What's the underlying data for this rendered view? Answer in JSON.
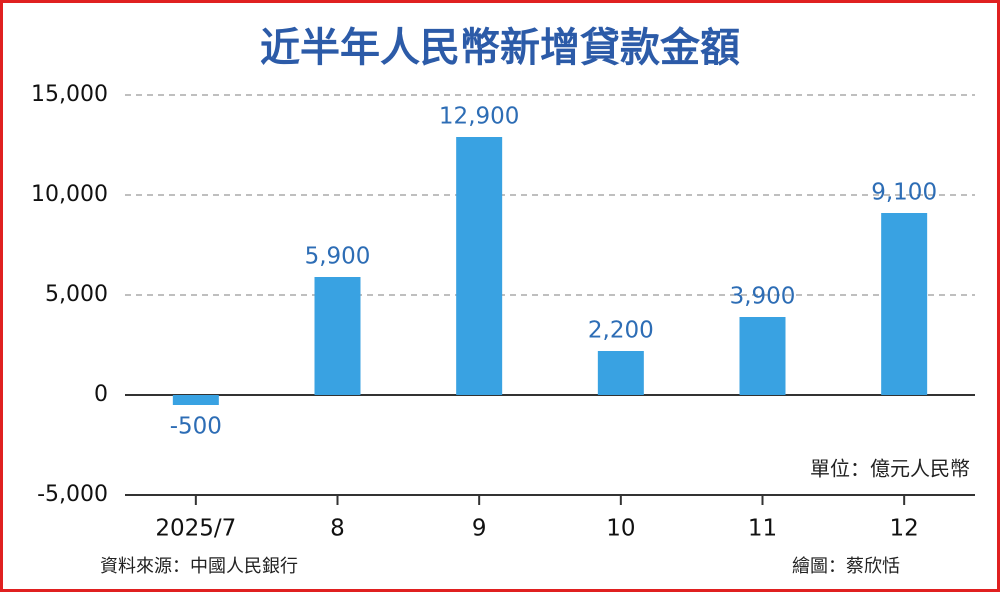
{
  "chart_data": {
    "type": "bar",
    "title": "近半年人民幣新增貸款金額",
    "categories": [
      "2025/7",
      "8",
      "9",
      "10",
      "11",
      "12"
    ],
    "values": [
      -500,
      5900,
      12900,
      2200,
      3900,
      9100
    ],
    "value_labels": [
      "-500",
      "5,900",
      "12,900",
      "2,200",
      "3,900",
      "9,100"
    ],
    "color": "#39a2e2",
    "ylim": [
      -5000,
      15000
    ],
    "yticks": [
      {
        "value": -5000,
        "label": "-5,000"
      },
      0,
      {
        "value": 5000,
        "label": "5,000"
      },
      {
        "value": 10000,
        "label": "10,000"
      },
      {
        "value": 15000,
        "label": "15,000"
      }
    ],
    "grid": true,
    "unit_note": "單位：億元人民幣",
    "source": "資料來源：中國人民銀行",
    "credit": "繪圖：蔡欣恬"
  }
}
